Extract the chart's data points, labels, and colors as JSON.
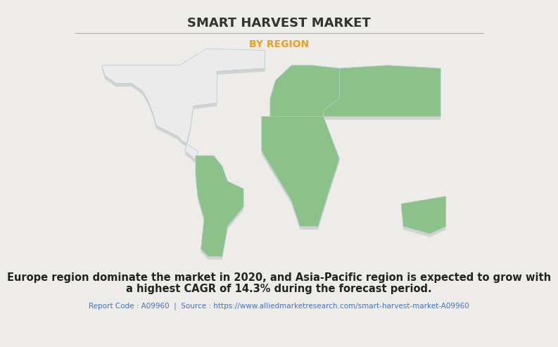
{
  "title": "SMART HARVEST MARKET",
  "subtitle": "BY REGION",
  "subtitle_color": "#E8A020",
  "title_color": "#333333",
  "background_color": "#EDECE8",
  "land_color": "#8DC18A",
  "na_color": "#EBEBEB",
  "border_color": "#A8CECE",
  "shadow_color": "#999999",
  "body_text_line1": "Europe region dominate the market in 2020, and Asia-Pacific region is expected to grow with",
  "body_text_line2": "a highest CAGR of 14.3% during the forecast period.",
  "footer_text": "Report Code : A09960  |  Source : https://www.alliedmarketresearch.com/smart-harvest-market-A09960",
  "footer_color": "#4472C4",
  "body_text_color": "#222222",
  "title_fontsize": 13,
  "subtitle_fontsize": 10,
  "body_fontsize": 10.5,
  "footer_fontsize": 7.5,
  "separator_color": "#AAAAAA"
}
